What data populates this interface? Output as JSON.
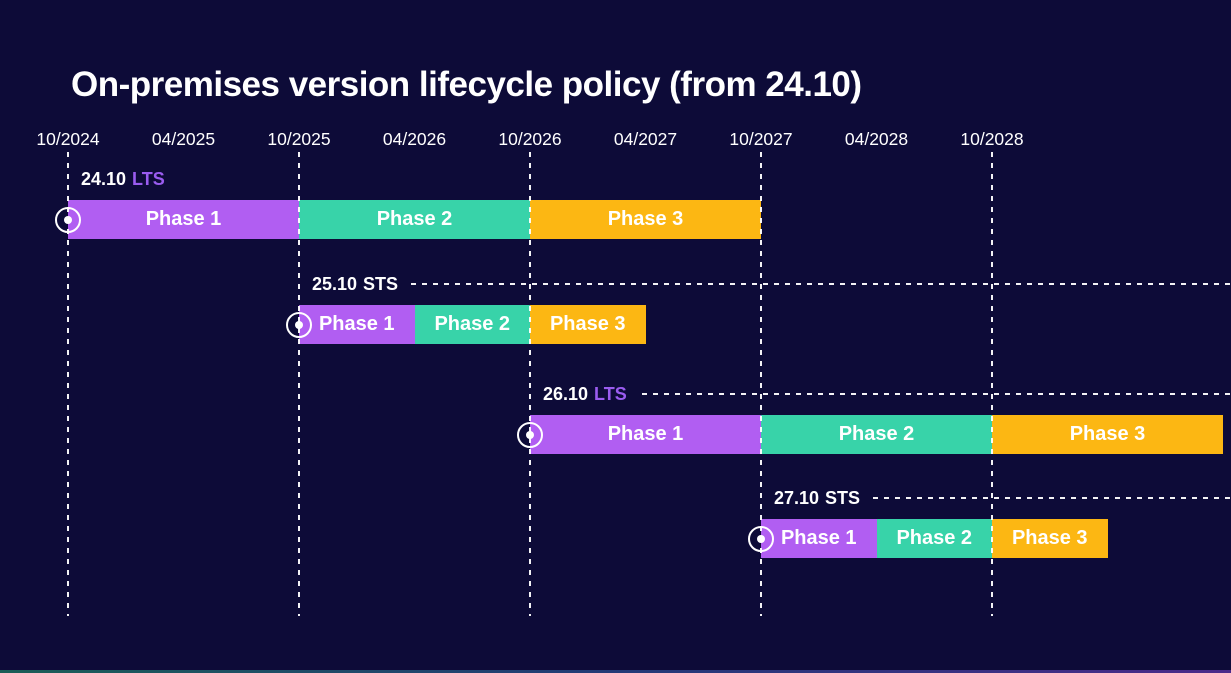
{
  "title": "On-premises version lifecycle policy (from 24.10)",
  "colors": {
    "background": "#0d0b38",
    "text": "#ffffff",
    "phase_colors": [
      "#b15ef2",
      "#38d3a9",
      "#fcb713"
    ],
    "lts_badge": "#9a5cf0",
    "sts_badge": "#ffffff",
    "gridline": "#ffffff",
    "footer_gradient": [
      "#1b5e57",
      "#233a77",
      "#4b2a8a"
    ]
  },
  "chart_data": {
    "type": "gantt",
    "title": "On-premises version lifecycle policy (from 24.10)",
    "x_axis": {
      "tick_labels": [
        "10/2024",
        "04/2025",
        "10/2025",
        "04/2026",
        "10/2026",
        "04/2027",
        "10/2027",
        "04/2028",
        "10/2028"
      ],
      "gridlines_at": [
        "10/2024",
        "10/2025",
        "10/2026",
        "10/2027",
        "10/2028"
      ],
      "months_per_tick": 6,
      "grid": "dashed-vertical"
    },
    "legend_position": "none",
    "rows": [
      {
        "version": "24.10",
        "release_type": "LTS",
        "leader_line": false,
        "phases": [
          {
            "label": "Phase 1",
            "start": "10/2024",
            "end": "10/2025"
          },
          {
            "label": "Phase 2",
            "start": "10/2025",
            "end": "10/2026"
          },
          {
            "label": "Phase 3",
            "start": "10/2026",
            "end": "10/2027"
          }
        ]
      },
      {
        "version": "25.10",
        "release_type": "STS",
        "leader_line": true,
        "phases": [
          {
            "label": "Phase 1",
            "start": "10/2025",
            "end": "04/2026"
          },
          {
            "label": "Phase 2",
            "start": "04/2026",
            "end": "10/2026"
          },
          {
            "label": "Phase 3",
            "start": "10/2026",
            "end": "04/2027"
          }
        ]
      },
      {
        "version": "26.10",
        "release_type": "LTS",
        "leader_line": true,
        "phases": [
          {
            "label": "Phase 1",
            "start": "10/2026",
            "end": "10/2027"
          },
          {
            "label": "Phase 2",
            "start": "10/2027",
            "end": "10/2028"
          },
          {
            "label": "Phase 3",
            "start": "10/2028",
            "end": "10/2029"
          }
        ]
      },
      {
        "version": "27.10",
        "release_type": "STS",
        "leader_line": true,
        "phases": [
          {
            "label": "Phase 1",
            "start": "10/2027",
            "end": "04/2028"
          },
          {
            "label": "Phase 2",
            "start": "04/2028",
            "end": "10/2028"
          },
          {
            "label": "Phase 3",
            "start": "10/2028",
            "end": "04/2029"
          }
        ]
      }
    ]
  }
}
